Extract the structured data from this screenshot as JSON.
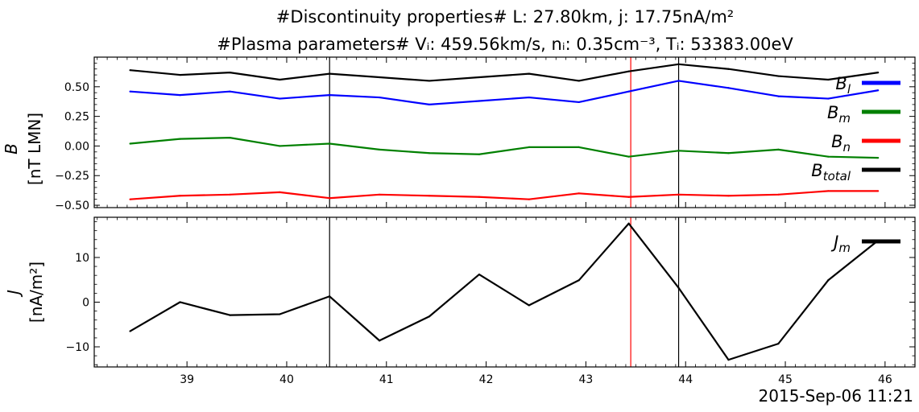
{
  "title_line1": "#Discontinuity properties# L: 27.80km, j: 17.75nA/m²",
  "title_line2": "#Plasma parameters# Vᵢ: 459.56km/s, nᵢ: 0.35cm⁻³, Tᵢ: 53383.00eV",
  "date_label": "2015-Sep-06 11:21",
  "chart_data": [
    {
      "type": "line",
      "panel": "top",
      "ylabel_line1": "B",
      "ylabel_line2": "[nT LMN]",
      "xlim": [
        38.07,
        46.3
      ],
      "ylim": [
        -0.52,
        0.75
      ],
      "x_ticks": [
        39,
        40,
        41,
        42,
        43,
        44,
        45,
        46
      ],
      "y_ticks": [
        0.5,
        0.25,
        0.0,
        -0.25,
        -0.5
      ],
      "y_tick_labels": [
        "0.50",
        "0.25",
        "0.00",
        "−0.25",
        "−0.50"
      ],
      "x": [
        38.43,
        38.93,
        39.43,
        39.93,
        40.43,
        40.93,
        41.43,
        41.93,
        42.43,
        42.93,
        43.43,
        43.93,
        44.43,
        44.93,
        45.43,
        45.93
      ],
      "series": [
        {
          "name": "B_l",
          "label_main": "B",
          "label_sub": "l",
          "color": "#0000ff",
          "values": [
            0.46,
            0.43,
            0.46,
            0.4,
            0.43,
            0.41,
            0.35,
            0.38,
            0.41,
            0.37,
            0.46,
            0.55,
            0.49,
            0.42,
            0.4,
            0.47
          ]
        },
        {
          "name": "B_m",
          "label_main": "B",
          "label_sub": "m",
          "color": "#008000",
          "values": [
            0.02,
            0.06,
            0.07,
            0.0,
            0.02,
            -0.03,
            -0.06,
            -0.07,
            -0.01,
            -0.01,
            -0.09,
            -0.04,
            -0.06,
            -0.03,
            -0.09,
            -0.1
          ]
        },
        {
          "name": "B_n",
          "label_main": "B",
          "label_sub": "n",
          "color": "#ff0000",
          "values": [
            -0.45,
            -0.42,
            -0.41,
            -0.39,
            -0.44,
            -0.41,
            -0.42,
            -0.43,
            -0.45,
            -0.4,
            -0.43,
            -0.41,
            -0.42,
            -0.41,
            -0.38,
            -0.38
          ]
        },
        {
          "name": "B_total",
          "label_main": "B",
          "label_sub": "total",
          "color": "#000000",
          "values": [
            0.64,
            0.6,
            0.62,
            0.56,
            0.61,
            0.58,
            0.55,
            0.58,
            0.61,
            0.55,
            0.63,
            0.69,
            0.65,
            0.59,
            0.56,
            0.62
          ]
        }
      ],
      "vlines": [
        {
          "x": 40.43,
          "color": "#000000"
        },
        {
          "x": 43.45,
          "color": "#ff0000"
        },
        {
          "x": 43.93,
          "color": "#000000"
        }
      ]
    },
    {
      "type": "line",
      "panel": "bottom",
      "ylabel_line1": "J",
      "ylabel_line2": "[nA/m²]",
      "xlim": [
        38.07,
        46.3
      ],
      "ylim": [
        -14.5,
        19.0
      ],
      "x_ticks": [
        39,
        40,
        41,
        42,
        43,
        44,
        45,
        46
      ],
      "x_tick_labels": [
        "39",
        "40",
        "41",
        "42",
        "43",
        "44",
        "45",
        "46"
      ],
      "y_ticks": [
        10,
        0,
        -10
      ],
      "y_tick_labels": [
        "10",
        "0",
        "−10"
      ],
      "x": [
        38.43,
        38.93,
        39.43,
        39.93,
        40.43,
        40.93,
        41.43,
        41.93,
        42.43,
        42.93,
        43.43,
        43.93,
        44.43,
        44.93,
        45.43,
        45.93
      ],
      "series": [
        {
          "name": "J_m",
          "label_main": "J",
          "label_sub": "m",
          "color": "#000000",
          "values": [
            -6.5,
            0.0,
            -2.9,
            -2.7,
            1.3,
            -8.6,
            -3.2,
            6.2,
            -0.7,
            4.9,
            17.6,
            3.2,
            -12.9,
            -9.3,
            4.9,
            13.8
          ]
        }
      ],
      "vlines": [
        {
          "x": 40.43,
          "color": "#000000"
        },
        {
          "x": 43.45,
          "color": "#ff0000"
        },
        {
          "x": 43.93,
          "color": "#000000"
        }
      ]
    }
  ]
}
